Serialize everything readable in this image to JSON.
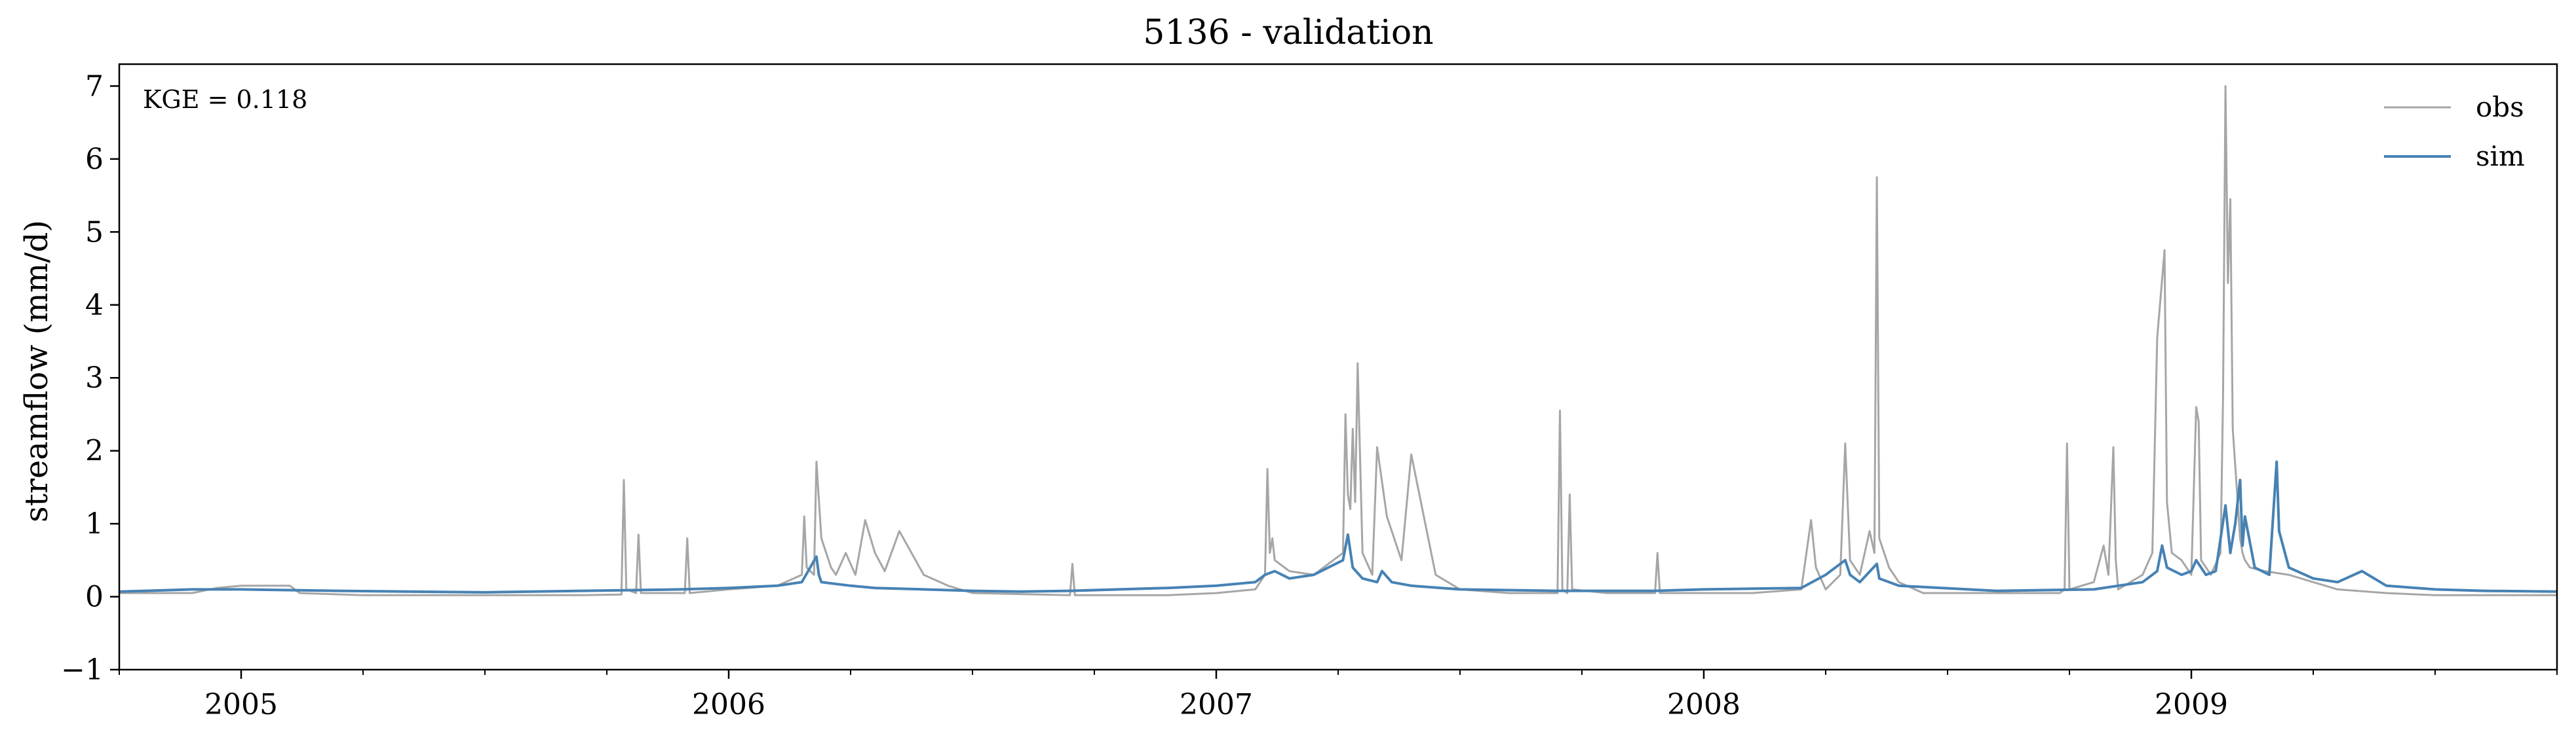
{
  "chart_data": {
    "type": "line",
    "title": "5136 - validation",
    "xlabel": "",
    "ylabel": "streamflow (mm/d)",
    "annotation": "KGE = 0.118",
    "xlim": [
      2004.75,
      2009.75
    ],
    "ylim": [
      -1,
      7.3
    ],
    "y_ticks": [
      -1,
      0,
      1,
      2,
      3,
      4,
      5,
      6,
      7
    ],
    "x_ticks": [
      2005,
      2006,
      2007,
      2008,
      2009
    ],
    "x_ticklabels": [
      "2005",
      "2006",
      "2007",
      "2008",
      "2009"
    ],
    "y_ticklabels": [
      "−1",
      "0",
      "1",
      "2",
      "3",
      "4",
      "5",
      "6",
      "7"
    ],
    "legend": {
      "position": "top-right",
      "entries": [
        "obs",
        "sim"
      ]
    },
    "series": [
      {
        "name": "obs",
        "color": "#a6a6a6",
        "x": [
          2004.75,
          2004.9,
          2004.95,
          2005.0,
          2005.1,
          2005.12,
          2005.25,
          2005.5,
          2005.7,
          2005.78,
          2005.785,
          2005.79,
          2005.81,
          2005.815,
          2005.82,
          2005.91,
          2005.915,
          2005.92,
          2006.0,
          2006.1,
          2006.15,
          2006.155,
          2006.16,
          2006.175,
          2006.18,
          2006.19,
          2006.21,
          2006.22,
          2006.24,
          2006.26,
          2006.28,
          2006.3,
          2006.32,
          2006.35,
          2006.4,
          2006.45,
          2006.5,
          2006.7,
          2006.705,
          2006.71,
          2006.9,
          2007.0,
          2007.08,
          2007.1,
          2007.105,
          2007.11,
          2007.115,
          2007.12,
          2007.15,
          2007.2,
          2007.26,
          2007.265,
          2007.27,
          2007.275,
          2007.28,
          2007.285,
          2007.29,
          2007.3,
          2007.32,
          2007.33,
          2007.35,
          2007.38,
          2007.4,
          2007.45,
          2007.5,
          2007.6,
          2007.7,
          2007.705,
          2007.71,
          2007.72,
          2007.725,
          2007.73,
          2007.8,
          2007.9,
          2007.905,
          2007.91,
          2008.0,
          2008.1,
          2008.2,
          2008.22,
          2008.23,
          2008.25,
          2008.28,
          2008.29,
          2008.3,
          2008.32,
          2008.34,
          2008.35,
          2008.355,
          2008.36,
          2008.38,
          2008.4,
          2008.45,
          2008.5,
          2008.6,
          2008.73,
          2008.74,
          2008.745,
          2008.75,
          2008.8,
          2008.82,
          2008.83,
          2008.84,
          2008.845,
          2008.85,
          2008.9,
          2008.92,
          2008.93,
          2008.94,
          2008.945,
          2008.95,
          2008.96,
          2008.98,
          2009.0,
          2009.01,
          2009.015,
          2009.02,
          2009.04,
          2009.06,
          2009.065,
          2009.07,
          2009.075,
          2009.08,
          2009.085,
          2009.09,
          2009.1,
          2009.105,
          2009.11,
          2009.12,
          2009.15,
          2009.2,
          2009.25,
          2009.3,
          2009.4,
          2009.5,
          2009.6,
          2009.75
        ],
        "values": [
          0.05,
          0.05,
          0.12,
          0.15,
          0.15,
          0.05,
          0.02,
          0.02,
          0.02,
          0.03,
          1.6,
          0.1,
          0.05,
          0.85,
          0.05,
          0.05,
          0.8,
          0.05,
          0.1,
          0.15,
          0.3,
          1.1,
          0.4,
          0.3,
          1.85,
          0.8,
          0.4,
          0.3,
          0.6,
          0.3,
          1.05,
          0.6,
          0.35,
          0.9,
          0.3,
          0.15,
          0.05,
          0.02,
          0.45,
          0.02,
          0.02,
          0.05,
          0.1,
          0.3,
          1.75,
          0.6,
          0.8,
          0.5,
          0.35,
          0.3,
          0.6,
          2.5,
          1.4,
          1.2,
          2.3,
          1.3,
          3.2,
          0.6,
          0.3,
          2.05,
          1.1,
          0.5,
          1.95,
          0.3,
          0.1,
          0.05,
          0.05,
          2.55,
          0.1,
          0.05,
          1.4,
          0.1,
          0.05,
          0.05,
          0.6,
          0.05,
          0.05,
          0.05,
          0.1,
          1.05,
          0.4,
          0.1,
          0.3,
          2.1,
          0.5,
          0.3,
          0.9,
          0.6,
          5.75,
          0.8,
          0.4,
          0.2,
          0.05,
          0.05,
          0.05,
          0.05,
          0.1,
          2.1,
          0.1,
          0.2,
          0.7,
          0.3,
          2.05,
          0.5,
          0.1,
          0.3,
          0.6,
          3.55,
          4.35,
          4.75,
          1.3,
          0.6,
          0.5,
          0.3,
          2.6,
          2.4,
          0.5,
          0.3,
          0.6,
          2.75,
          7.0,
          4.3,
          5.45,
          2.3,
          1.8,
          0.8,
          0.6,
          0.5,
          0.4,
          0.35,
          0.3,
          0.2,
          0.1,
          0.05,
          0.02,
          0.02,
          0.02
        ]
      },
      {
        "name": "sim",
        "color": "#4682b4",
        "x": [
          2004.75,
          2004.9,
          2005.0,
          2005.2,
          2005.5,
          2005.7,
          2005.9,
          2006.0,
          2006.1,
          2006.15,
          2006.18,
          2006.185,
          2006.19,
          2006.25,
          2006.3,
          2006.4,
          2006.5,
          2006.6,
          2006.7,
          2006.8,
          2006.9,
          2007.0,
          2007.08,
          2007.1,
          2007.12,
          2007.15,
          2007.2,
          2007.26,
          2007.27,
          2007.28,
          2007.3,
          2007.33,
          2007.34,
          2007.36,
          2007.4,
          2007.5,
          2007.7,
          2007.9,
          2008.0,
          2008.2,
          2008.25,
          2008.29,
          2008.3,
          2008.32,
          2008.355,
          2008.36,
          2008.4,
          2008.6,
          2008.8,
          2008.9,
          2008.93,
          2008.94,
          2008.95,
          2008.98,
          2009.0,
          2009.01,
          2009.03,
          2009.05,
          2009.07,
          2009.08,
          2009.09,
          2009.1,
          2009.105,
          2009.11,
          2009.13,
          2009.16,
          2009.175,
          2009.18,
          2009.2,
          2009.25,
          2009.3,
          2009.35,
          2009.4,
          2009.5,
          2009.6,
          2009.75
        ],
        "values": [
          0.07,
          0.1,
          0.1,
          0.08,
          0.06,
          0.08,
          0.1,
          0.12,
          0.15,
          0.2,
          0.55,
          0.3,
          0.2,
          0.15,
          0.12,
          0.1,
          0.08,
          0.07,
          0.08,
          0.1,
          0.12,
          0.15,
          0.2,
          0.3,
          0.35,
          0.25,
          0.3,
          0.5,
          0.85,
          0.4,
          0.25,
          0.2,
          0.35,
          0.2,
          0.15,
          0.1,
          0.08,
          0.08,
          0.1,
          0.12,
          0.3,
          0.5,
          0.3,
          0.2,
          0.45,
          0.25,
          0.15,
          0.08,
          0.1,
          0.2,
          0.35,
          0.7,
          0.4,
          0.3,
          0.35,
          0.5,
          0.3,
          0.35,
          1.25,
          0.6,
          1.0,
          1.6,
          0.7,
          1.1,
          0.4,
          0.3,
          1.85,
          0.9,
          0.4,
          0.25,
          0.2,
          0.35,
          0.15,
          0.1,
          0.08,
          0.07
        ]
      }
    ]
  }
}
